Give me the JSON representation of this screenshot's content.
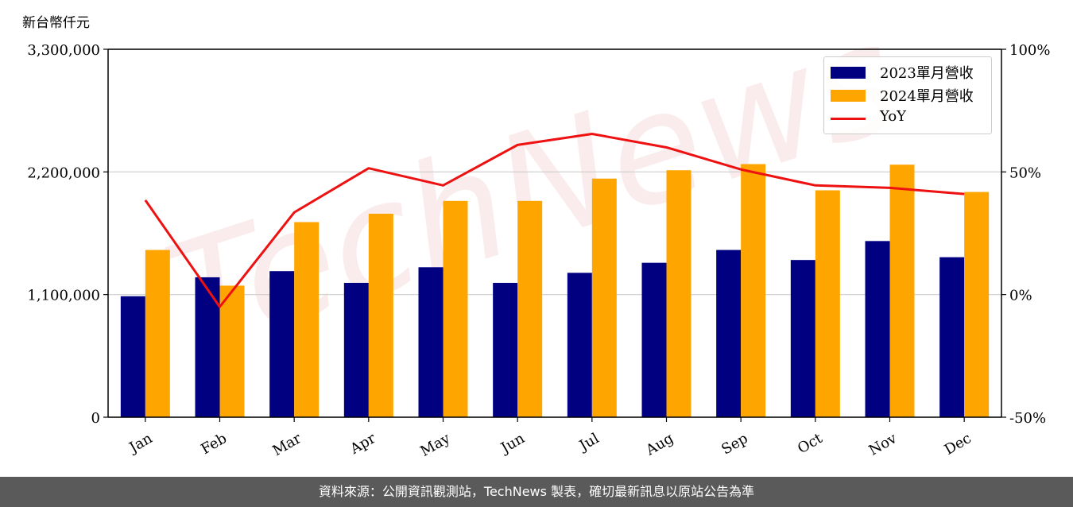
{
  "y_axis_label": "新台幣仟元",
  "footer_text": "資料來源：公開資訊觀測站，TechNews 製表，確切最新訊息以原站公告為準",
  "watermark_text": "TechNews",
  "colors": {
    "bar2023": "#000080",
    "bar2024": "#FFA500",
    "yoy": "#EE1111",
    "grid": "#cccccc",
    "footer": "#5a5a5a"
  },
  "chart_data": {
    "type": "bar",
    "categories": [
      "Jan",
      "Feb",
      "Mar",
      "Apr",
      "May",
      "Jun",
      "Jul",
      "Aug",
      "Sep",
      "Oct",
      "Nov",
      "Dec"
    ],
    "series": [
      {
        "name": "2023單月營收",
        "type": "bar",
        "values": [
          1085000,
          1255000,
          1310000,
          1205000,
          1345000,
          1205000,
          1295000,
          1385000,
          1500000,
          1410000,
          1580000,
          1435000
        ]
      },
      {
        "name": "2024單月營收",
        "type": "bar",
        "values": [
          1500000,
          1180000,
          1750000,
          1825000,
          1940000,
          1940000,
          2140000,
          2215000,
          2270000,
          2035000,
          2265000,
          2020000
        ]
      },
      {
        "name": "YoY",
        "type": "line",
        "axis": "right",
        "values": [
          38.5,
          -5.0,
          33.5,
          51.5,
          44.5,
          61.0,
          65.5,
          60.0,
          51.0,
          44.5,
          43.5,
          41.0
        ]
      }
    ],
    "ylim_left": [
      0,
      3300000
    ],
    "yticks_left": [
      "0",
      "1,100,000",
      "2,200,000",
      "3,300,000"
    ],
    "ylim_right": [
      -50,
      100
    ],
    "yticks_right": [
      "-50%",
      "0%",
      "50%",
      "100%"
    ],
    "ylabel": "新台幣仟元",
    "grid": "horizontal",
    "legend_position": "top-right"
  }
}
